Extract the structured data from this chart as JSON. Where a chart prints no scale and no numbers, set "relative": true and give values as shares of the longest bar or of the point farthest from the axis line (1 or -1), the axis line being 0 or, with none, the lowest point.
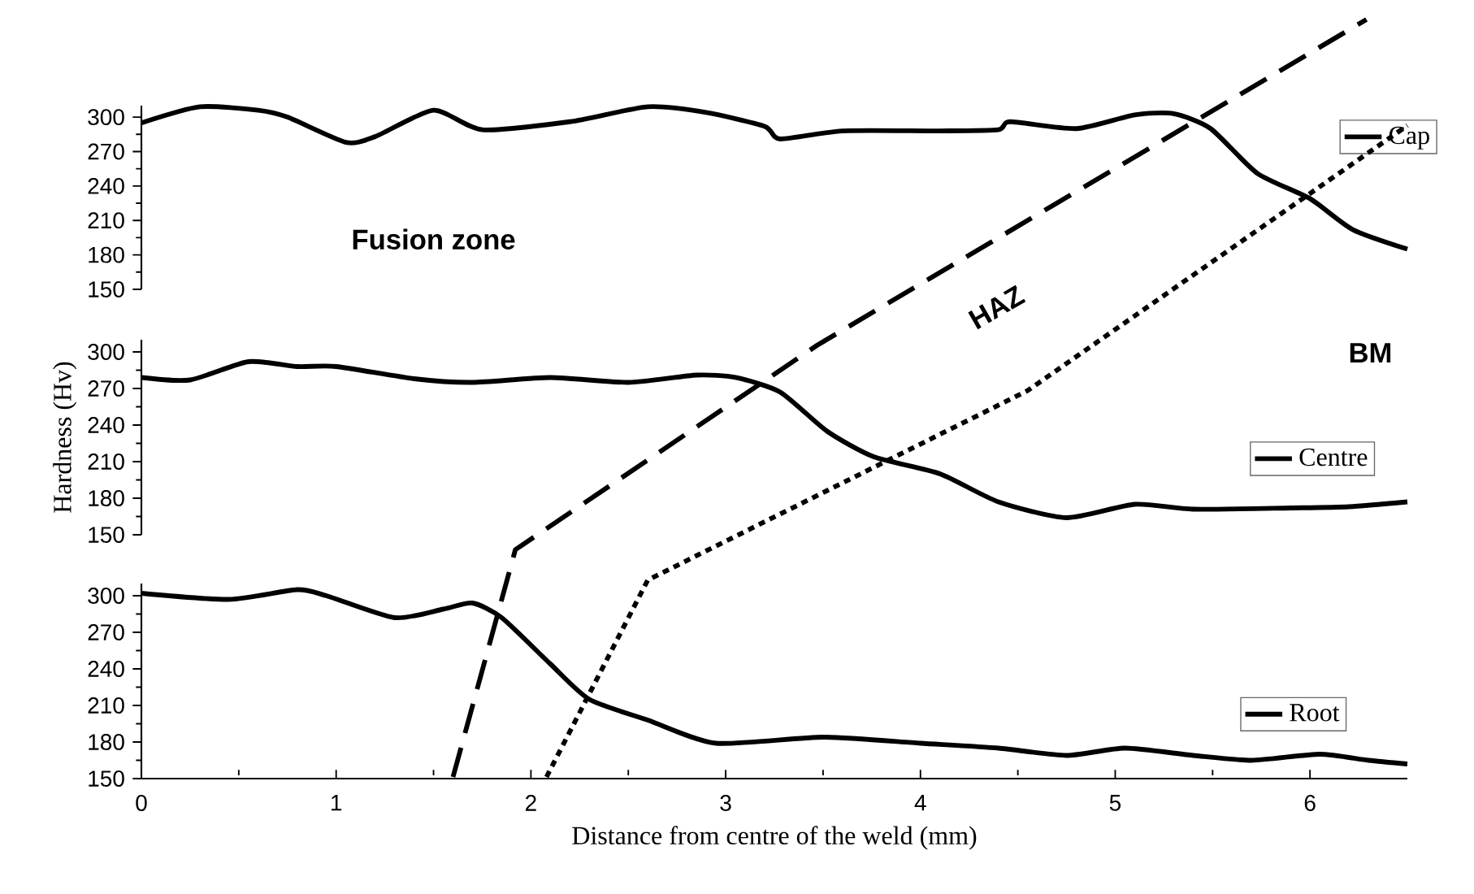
{
  "chart_data": [
    {
      "type": "line",
      "xticks": [
        0,
        1,
        2,
        3,
        4,
        5,
        6
      ],
      "ylim": [
        150,
        310
      ],
      "yticks": [
        150,
        180,
        210,
        240,
        270,
        300
      ],
      "tick_labels": "y",
      "legend": "top right",
      "series": [
        {
          "name": "Cap",
          "color": "#000000",
          "line_style": "solid",
          "x": [
            0,
            0.3,
            0.6,
            0.75,
            1.05,
            1.2,
            1.5,
            1.75,
            2.2,
            2.6,
            2.9,
            3.2,
            3.28,
            3.6,
            4.1,
            4.4,
            4.46,
            4.8,
            5.1,
            5.3,
            5.49,
            5.73,
            6.0,
            6.22,
            6.5
          ],
          "values": [
            295,
            309,
            306,
            300,
            278,
            283,
            306,
            289,
            296,
            309,
            304,
            292,
            281,
            288,
            288,
            289,
            296,
            290,
            302,
            303,
            290,
            251,
            229,
            202,
            185
          ]
        }
      ]
    },
    {
      "type": "line",
      "xticks": [
        0,
        1,
        2,
        3,
        4,
        5,
        6
      ],
      "ylim": [
        150,
        310
      ],
      "yticks": [
        150,
        180,
        210,
        240,
        270,
        300
      ],
      "tick_labels": "y",
      "ylabel": "Hardness (Hv)",
      "legend": "right",
      "series": [
        {
          "name": "Centre",
          "color": "#000000",
          "line_style": "solid",
          "x": [
            0,
            0.25,
            0.55,
            0.8,
            1.0,
            1.4,
            1.7,
            2.1,
            2.5,
            2.85,
            3.05,
            3.28,
            3.52,
            3.76,
            4.1,
            4.4,
            4.75,
            5.1,
            5.4,
            5.9,
            6.2,
            6.5
          ],
          "values": [
            279,
            277,
            292,
            288,
            288,
            278,
            275,
            279,
            275,
            281,
            279,
            267,
            235,
            214,
            200,
            177,
            164,
            175,
            171,
            172,
            173,
            177
          ]
        }
      ]
    },
    {
      "type": "line",
      "xlim": [
        0,
        6.5
      ],
      "xticks": [
        0,
        1,
        2,
        3,
        4,
        5,
        6
      ],
      "ylim": [
        150,
        310
      ],
      "yticks": [
        150,
        180,
        210,
        240,
        270,
        300
      ],
      "xlabel": "Distance from centre of the weld (mm)",
      "legend": "bottom right",
      "series": [
        {
          "name": "Root",
          "color": "#000000",
          "line_style": "solid",
          "x": [
            0,
            0.45,
            0.8,
            0.95,
            1.3,
            1.55,
            1.7,
            1.85,
            2.1,
            2.3,
            2.6,
            2.95,
            3.5,
            4.0,
            4.4,
            4.75,
            5.05,
            5.4,
            5.7,
            6.05,
            6.3,
            6.5
          ],
          "values": [
            302,
            297,
            305,
            300,
            282,
            289,
            294,
            282,
            244,
            215,
            198,
            179,
            184,
            179,
            175,
            169,
            175,
            169,
            165,
            170,
            165,
            162
          ]
        }
      ]
    },
    {
      "type": "line",
      "relative": true,
      "xlim": [
        0,
        6.5
      ],
      "tick_labels": false,
      "annotations": [
        "Fusion zone",
        "HAZ",
        "BM"
      ],
      "series": [
        {
          "color": "#000000",
          "line_style": "dashed",
          "x": [
            1.6,
            1.92,
            3.47,
            6.29
          ],
          "values": [
            0,
            0.3,
            0.57,
            1.0
          ]
        },
        {
          "color": "#000000",
          "line_style": "dotted",
          "x": [
            2.08,
            2.6,
            4.55,
            6.5
          ],
          "values": [
            0,
            0.26,
            0.51,
            0.86
          ]
        }
      ]
    }
  ]
}
